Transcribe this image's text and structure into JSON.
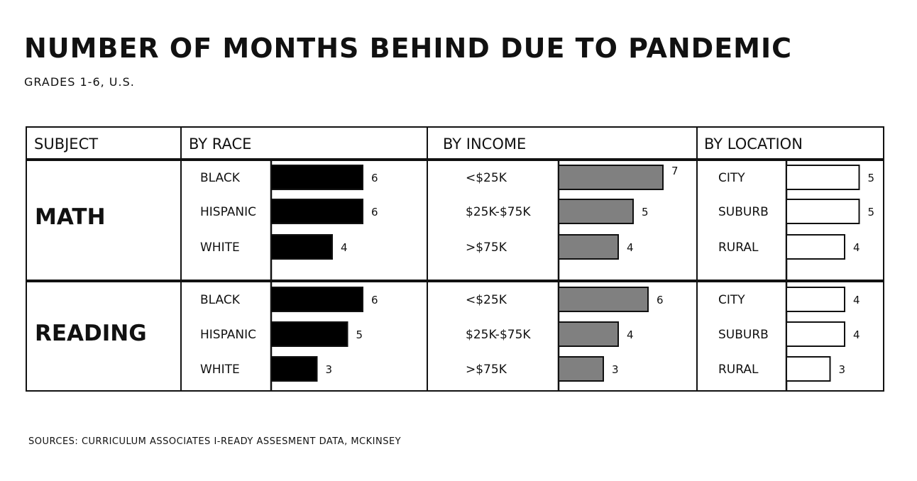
{
  "title": "NUMBER OF MONTHS BEHIND DUE TO PANDEMIC",
  "subtitle": "GRADES 1-6, U.S.",
  "source": "SOURCES: CURRICULUM ASSOCIATES I-READY ASSESMENT DATA, MCKINSEY",
  "headers": {
    "subject": "SUBJECT",
    "race": "BY RACE",
    "income": "BY INCOME",
    "location": "BY LOCATION"
  },
  "colors": {
    "race_bar": "#000000",
    "income_bar": "#808080",
    "location_bar": "#ffffff",
    "outline": "#111111"
  },
  "chart_data": {
    "type": "bar",
    "title": "NUMBER OF MONTHS BEHIND DUE TO PANDEMIC",
    "subtitle": "GRADES 1-6, U.S.",
    "subjects": [
      "MATH",
      "READING"
    ],
    "groups": [
      {
        "name": "BY RACE",
        "categories": [
          "BLACK",
          "HISPANIC",
          "WHITE"
        ],
        "series": [
          {
            "name": "MATH",
            "values": [
              6,
              6,
              4
            ]
          },
          {
            "name": "READING",
            "values": [
              6,
              5,
              3
            ]
          }
        ]
      },
      {
        "name": "BY INCOME",
        "categories": [
          "<$25K",
          "$25K-$75K",
          ">$75K"
        ],
        "series": [
          {
            "name": "MATH",
            "values": [
              7,
              5,
              4
            ]
          },
          {
            "name": "READING",
            "values": [
              6,
              4,
              3
            ]
          }
        ]
      },
      {
        "name": "BY LOCATION",
        "categories": [
          "CITY",
          "SUBURB",
          "RURAL"
        ],
        "series": [
          {
            "name": "MATH",
            "values": [
              5,
              5,
              4
            ]
          },
          {
            "name": "READING",
            "values": [
              4,
              4,
              3
            ]
          }
        ]
      }
    ],
    "orientation": "horizontal",
    "grid": false,
    "legend": "none"
  }
}
